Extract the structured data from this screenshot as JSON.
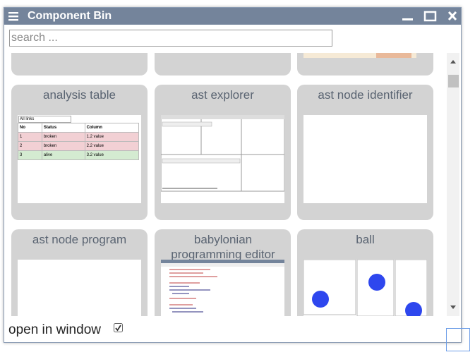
{
  "window": {
    "title": "Component Bin"
  },
  "search": {
    "placeholder": "search ..."
  },
  "cards": [
    {
      "title": "analysis table"
    },
    {
      "title": "ast explorer"
    },
    {
      "title": "ast node identifier"
    },
    {
      "title": "ast node program"
    },
    {
      "title": "babylonian programming editor"
    },
    {
      "title": "ball"
    }
  ],
  "analysis_table_preview": {
    "filter": "All links",
    "header": [
      "No",
      "Status",
      "Column"
    ],
    "rows": [
      [
        "1",
        "broken",
        "1.2 value"
      ],
      [
        "2",
        "broken",
        "2.2 value"
      ],
      [
        "3",
        "alive",
        "3.2 value"
      ]
    ]
  },
  "footer": {
    "label": "open in window"
  }
}
